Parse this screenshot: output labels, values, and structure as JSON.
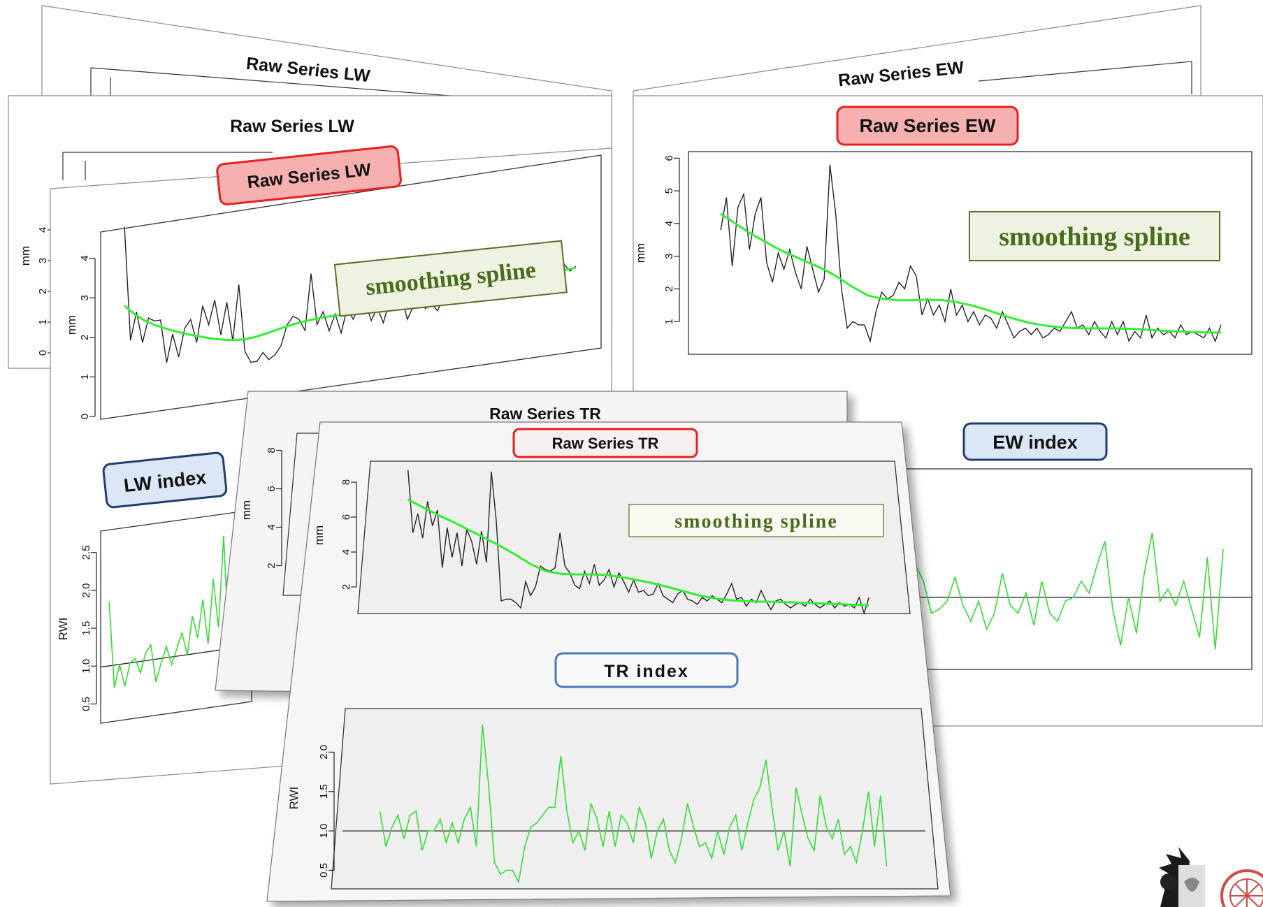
{
  "colors": {
    "raw_line": "#222222",
    "spline_line": "#33ee33",
    "index_line": "#33dd33",
    "raw_badge_fill": "#f7b0b0",
    "raw_badge_stroke": "#e52020",
    "index_badge_fill": "#dbe6f6",
    "index_badge_stroke": "#1f3e6e",
    "spline_box_fill": "#eef2e0",
    "spline_box_stroke": "#5a6e2c",
    "spline_text": "#4a6b1c"
  },
  "labels": {
    "raw_lw": "Raw Series LW",
    "raw_ew": "Raw Series EW",
    "raw_tr": "Raw Series TR",
    "lw_index": "LW index",
    "ew_index": "EW index",
    "tr_index": "TR index",
    "smoothing_spline": "smoothing spline",
    "mm": "mm",
    "rwi": "RWI"
  },
  "chart_data": [
    {
      "id": "lw_raw",
      "type": "line",
      "title": "Raw Series LW",
      "ylabel": "mm",
      "ylim": [
        0,
        4.6
      ],
      "yticks": [
        "0",
        "1",
        "2",
        "3",
        "4"
      ],
      "annotation": "smoothing spline",
      "series": [
        {
          "values": [
            4.8,
            1.9,
            2.6,
            1.8,
            2.4,
            2.3,
            2.3,
            1.2,
            1.9,
            1.3,
            2.0,
            2.2,
            1.6,
            2.5,
            2.0,
            2.6,
            1.7,
            2.5,
            1.5,
            2.9,
            1.2,
            0.9,
            0.9,
            1.1,
            0.9,
            1.0,
            1.2,
            1.7,
            1.9,
            1.8,
            1.5,
            2.9,
            1.6,
            1.9,
            1.4,
            1.8,
            1.3,
            1.9,
            1.6,
            1.9,
            2.0,
            1.5,
            1.8,
            1.4,
            1.9,
            1.7,
            2.0,
            1.4,
            1.7,
            2.0,
            1.6,
            1.7,
            1.5,
            1.8,
            1.7,
            2.0,
            1.6,
            1.8,
            2.2,
            1.7,
            1.9,
            2.0,
            1.8,
            2.2,
            1.9,
            1.7,
            2.1,
            1.9,
            2.2,
            2.0,
            2.1,
            1.9,
            2.0,
            2.2,
            2.0,
            2.1
          ]
        },
        {
          "values": [
            2.8,
            2.55,
            2.35,
            2.2,
            2.08,
            1.97,
            1.87,
            1.78,
            1.7,
            1.62,
            1.56,
            1.52,
            1.5,
            1.52,
            1.56,
            1.61,
            1.66,
            1.7,
            1.73,
            1.75,
            1.76,
            1.76,
            1.75,
            1.74,
            1.72,
            1.71,
            1.7,
            1.7,
            1.71,
            1.73,
            1.75,
            1.78,
            1.81,
            1.84,
            1.87,
            1.9,
            1.93,
            1.95,
            1.97,
            1.99,
            2.01,
            2.02,
            2.03,
            2.04,
            2.05,
            2.06
          ]
        }
      ]
    },
    {
      "id": "ew_raw",
      "type": "line",
      "title": "Raw Series EW",
      "ylabel": "mm",
      "ylim": [
        0,
        6.2
      ],
      "yticks": [
        "1",
        "2",
        "3",
        "4",
        "5",
        "6"
      ],
      "annotation": "smoothing spline",
      "series": [
        {
          "values": [
            3.8,
            4.8,
            2.7,
            4.5,
            4.9,
            3.2,
            4.3,
            4.8,
            2.8,
            2.2,
            3.1,
            2.6,
            3.2,
            2.5,
            2.0,
            3.3,
            2.6,
            1.9,
            2.3,
            5.8,
            4.3,
            2.0,
            0.8,
            1.0,
            0.9,
            0.9,
            0.4,
            1.3,
            1.9,
            1.7,
            1.8,
            2.2,
            2.0,
            2.7,
            2.4,
            1.2,
            1.7,
            1.2,
            1.5,
            1.0,
            2.0,
            1.2,
            1.5,
            1.0,
            1.3,
            0.9,
            1.2,
            1.1,
            0.8,
            1.3,
            0.9,
            0.5,
            0.7,
            0.8,
            0.6,
            0.8,
            0.5,
            0.6,
            0.8,
            0.7,
            1.0,
            1.3,
            0.8,
            0.9,
            0.6,
            1.0,
            0.7,
            0.5,
            1.0,
            0.6,
            1.0,
            0.4,
            0.7,
            0.5,
            1.2,
            0.5,
            0.8,
            0.6,
            0.7,
            0.5,
            0.9,
            0.6,
            0.7,
            0.6,
            0.5,
            0.8,
            0.4,
            0.9
          ]
        },
        {
          "values": [
            4.3,
            4.0,
            3.7,
            3.45,
            3.2,
            3.0,
            2.8,
            2.6,
            2.35,
            2.05,
            1.8,
            1.7,
            1.65,
            1.65,
            1.67,
            1.66,
            1.6,
            1.5,
            1.37,
            1.22,
            1.08,
            0.96,
            0.88,
            0.83,
            0.8,
            0.79,
            0.79,
            0.79,
            0.78,
            0.75,
            0.72,
            0.7,
            0.68,
            0.67,
            0.66
          ]
        }
      ]
    },
    {
      "id": "tr_raw",
      "type": "line",
      "title": "Raw Series TR",
      "ylabel": "mm",
      "ylim": [
        0.6,
        9
      ],
      "yticks": [
        "2",
        "4",
        "6",
        "8"
      ],
      "annotation": "smoothing spline",
      "series": [
        {
          "values": [
            8.7,
            5.1,
            6.2,
            4.8,
            6.9,
            5.5,
            6.4,
            3.1,
            5.4,
            3.7,
            5.1,
            3.2,
            5.3,
            4.6,
            3.3,
            5.2,
            3.4,
            8.6,
            5.8,
            1.2,
            1.3,
            1.3,
            1.1,
            0.8,
            2.3,
            1.5,
            2.0,
            3.2,
            3.0,
            2.9,
            3.1,
            5.1,
            3.2,
            2.8,
            2.1,
            1.9,
            2.9,
            2.2,
            3.3,
            2.1,
            2.4,
            3.0,
            2.0,
            2.8,
            2.3,
            1.7,
            2.4,
            1.7,
            1.8,
            1.5,
            1.6,
            2.2,
            1.5,
            1.3,
            1.1,
            1.6,
            1.8,
            1.3,
            1.2,
            1.0,
            1.4,
            1.2,
            1.5,
            1.3,
            1.1,
            1.6,
            2.2,
            1.3,
            1.4,
            0.9,
            1.3,
            1.1,
            1.8,
            1.2,
            0.7,
            1.2,
            1.3,
            1.0,
            0.8,
            1.0,
            1.1,
            0.9,
            1.3,
            1.0,
            0.8,
            1.0,
            1.2,
            0.8,
            1.1,
            0.9,
            1.0,
            0.8,
            1.4,
            0.5,
            1.4
          ]
        },
        {
          "values": [
            7.0,
            6.55,
            6.1,
            5.7,
            5.25,
            4.8,
            4.35,
            3.85,
            3.3,
            2.9,
            2.75,
            2.72,
            2.72,
            2.68,
            2.55,
            2.38,
            2.2,
            1.98,
            1.74,
            1.5,
            1.34,
            1.24,
            1.18,
            1.16,
            1.15,
            1.12,
            1.08,
            1.05,
            1.02,
            0.98,
            0.95
          ]
        }
      ]
    },
    {
      "id": "lw_index",
      "type": "line",
      "title": "LW index",
      "ylabel": "RWI",
      "ylim": [
        0.3,
        2.7
      ],
      "yticks": [
        "0.5",
        "1.0",
        "1.5",
        "2.0",
        "2.5"
      ],
      "reference_line": 1.0,
      "series": [
        {
          "values": [
            1.85,
            0.7,
            1.0,
            0.7,
            1.0,
            1.05,
            0.85,
            1.1,
            1.2,
            0.7,
            0.95,
            1.15,
            0.9,
            1.1,
            1.3,
            1.0,
            1.5,
            1.2,
            1.7,
            1.1,
            1.95,
            1.3,
            2.5,
            1.0,
            0.9,
            1.4,
            1.2
          ]
        }
      ]
    },
    {
      "id": "ew_index",
      "type": "line",
      "title": "EW index",
      "ylabel": "RWI",
      "ylim": [
        0.1,
        2.6
      ],
      "yticks": [],
      "reference_line": 1.0,
      "series": [
        {
          "values": [
            0.9,
            0.8,
            0.85,
            0.95,
            0.75,
            1.5,
            1.1,
            1.2,
            0.95,
            0.85,
            1.05,
            0.9,
            1.0,
            0.9,
            1.4,
            1.2,
            0.8,
            0.85,
            0.95,
            1.25,
            0.9,
            0.7,
            0.95,
            0.6,
            0.8,
            1.3,
            0.9,
            0.8,
            1.05,
            0.65,
            1.2,
            0.8,
            0.7,
            0.95,
            1.0,
            1.2,
            1.05,
            1.4,
            1.7,
            0.85,
            0.4,
            1.0,
            0.55,
            1.3,
            1.8,
            0.95,
            1.1,
            0.9,
            1.2,
            0.85,
            0.5,
            1.5,
            0.35,
            1.6
          ]
        }
      ]
    },
    {
      "id": "tr_index",
      "type": "line",
      "title": "TR index",
      "ylabel": "RWI",
      "ylim": [
        0.3,
        2.5
      ],
      "yticks": [
        "0.5",
        "1.0",
        "1.5",
        "2.0"
      ],
      "reference_line": 1.0,
      "series": [
        {
          "values": [
            1.25,
            0.8,
            1.05,
            1.2,
            0.9,
            1.2,
            1.25,
            0.75,
            1.0,
            1.0,
            1.15,
            0.85,
            1.1,
            0.85,
            1.15,
            1.3,
            0.8,
            2.35,
            1.6,
            0.6,
            0.45,
            0.5,
            0.5,
            0.35,
            0.8,
            1.05,
            1.1,
            1.2,
            1.3,
            1.3,
            1.95,
            1.25,
            0.85,
            1.0,
            0.75,
            1.35,
            1.15,
            0.8,
            1.25,
            0.8,
            1.2,
            1.1,
            0.85,
            1.3,
            1.1,
            0.65,
            1.0,
            1.15,
            0.75,
            0.6,
            0.9,
            1.35,
            1.05,
            0.8,
            0.85,
            0.65,
            1.0,
            0.7,
            1.05,
            1.2,
            0.75,
            1.1,
            1.4,
            1.55,
            1.9,
            1.3,
            0.75,
            1.0,
            0.55,
            1.55,
            1.2,
            0.9,
            0.75,
            1.45,
            1.05,
            0.9,
            1.15,
            0.7,
            0.8,
            0.6,
            1.0,
            1.5,
            0.8,
            1.45,
            0.55
          ]
        }
      ]
    }
  ]
}
